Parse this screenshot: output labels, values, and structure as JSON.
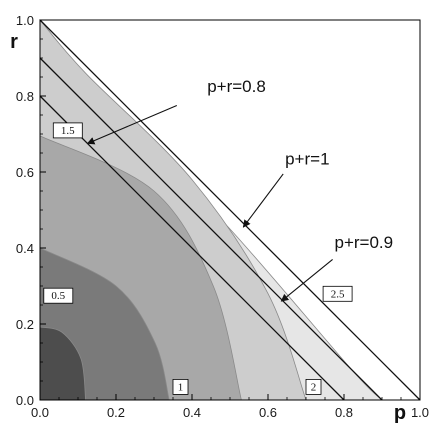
{
  "chart_data": {
    "type": "contour",
    "xlabel": "p",
    "ylabel": "r",
    "xlim": [
      0,
      1
    ],
    "ylim": [
      0,
      1
    ],
    "xticks": [
      "0.0",
      "0.2",
      "0.4",
      "0.6",
      "0.8",
      "1.0"
    ],
    "yticks": [
      "0.0",
      "0.2",
      "0.4",
      "0.6",
      "0.8",
      "1.0"
    ],
    "regions": [
      {
        "level_label": "0.5",
        "color": "#4d4d4d",
        "boundary": [
          [
            0,
            0.192
          ],
          [
            0.058,
            0.178
          ],
          [
            0.108,
            0.108
          ],
          [
            0.12,
            0
          ]
        ]
      },
      {
        "level_label": "1",
        "color": "#7a7a7a",
        "boundary": [
          [
            0,
            0.4
          ],
          [
            0.2,
            0.3
          ],
          [
            0.303,
            0.15
          ],
          [
            0.34,
            0
          ]
        ]
      },
      {
        "level_label": "1.5",
        "color": "#a8a8a8",
        "boundary": [
          [
            0,
            0.695
          ],
          [
            0.3,
            0.55
          ],
          [
            0.456,
            0.3
          ],
          [
            0.53,
            0
          ]
        ]
      },
      {
        "level_label": "2",
        "color": "#cdcdcd",
        "boundary": [
          [
            0,
            1.0
          ],
          [
            0.12,
            0.86
          ],
          [
            0.4,
            0.58
          ],
          [
            0.6,
            0.28
          ],
          [
            0.7,
            0
          ]
        ]
      },
      {
        "level_label": "2.5",
        "color": "#e6e6e6",
        "boundary": [
          [
            0,
            1.0
          ],
          [
            0.2,
            0.76
          ],
          [
            0.5,
            0.45
          ],
          [
            0.82,
            0.08
          ],
          [
            0.9,
            0
          ]
        ]
      }
    ],
    "region_above": {
      "color": "#ffffff"
    },
    "lines": [
      {
        "label": "p+r=0.8",
        "points": [
          [
            0,
            0.8
          ],
          [
            0.8,
            0
          ]
        ]
      },
      {
        "label": "p+r=0.9",
        "points": [
          [
            0,
            0.9
          ],
          [
            0.9,
            0
          ]
        ]
      },
      {
        "label": "p+r=1",
        "points": [
          [
            0,
            1.0
          ],
          [
            1.0,
            0
          ]
        ]
      }
    ],
    "contour_labels": [
      {
        "text": "0.5",
        "x": 0.01,
        "y": 0.26
      },
      {
        "text": "1",
        "x": 0.35,
        "y": 0.02
      },
      {
        "text": "1.5",
        "x": 0.035,
        "y": 0.695
      },
      {
        "text": "2",
        "x": 0.7,
        "y": 0.02
      },
      {
        "text": "2.5",
        "x": 0.745,
        "y": 0.265
      }
    ],
    "annotations": [
      {
        "text": "p+r=0.8",
        "text_at": [
          0.44,
          0.81
        ],
        "arrow_from": [
          0.36,
          0.775
        ],
        "arrow_to": [
          0.125,
          0.675
        ]
      },
      {
        "text": "p+r=1",
        "text_at": [
          0.645,
          0.62
        ],
        "arrow_from": [
          0.64,
          0.595
        ],
        "arrow_to": [
          0.535,
          0.455
        ]
      },
      {
        "text": "p+r=0.9",
        "text_at": [
          0.775,
          0.4
        ],
        "arrow_from": [
          0.77,
          0.37
        ],
        "arrow_to": [
          0.635,
          0.26
        ]
      }
    ]
  }
}
